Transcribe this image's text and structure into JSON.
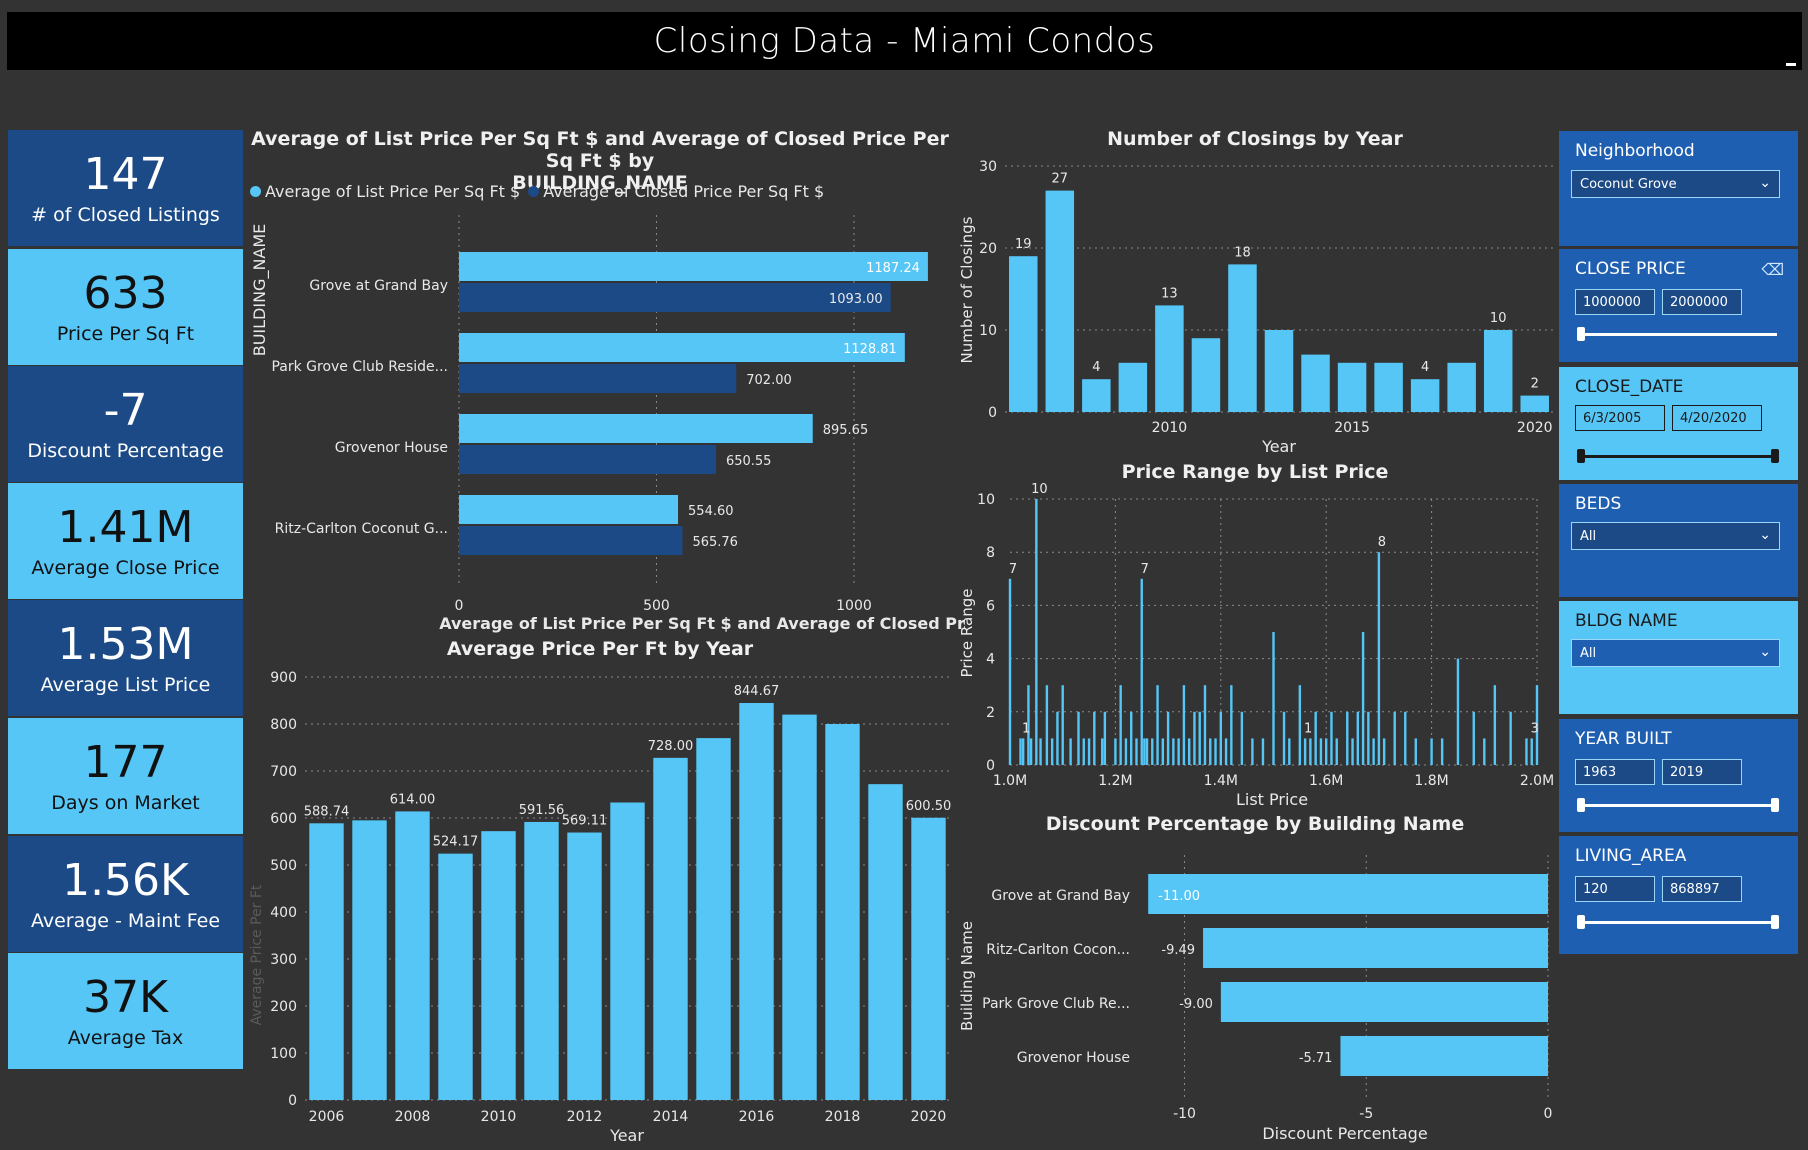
{
  "header": {
    "title": "Closing Data - Miami Condos"
  },
  "kpis": [
    {
      "value": "147",
      "label": "# of Closed Listings"
    },
    {
      "value": "633",
      "label": "Price Per Sq Ft"
    },
    {
      "value": "-7",
      "label": "Discount Percentage"
    },
    {
      "value": "1.41M",
      "label": "Average Close Price"
    },
    {
      "value": "1.53M",
      "label": "Average List Price"
    },
    {
      "value": "177",
      "label": "Days on Market"
    },
    {
      "value": "1.56K",
      "label": "Average - Maint Fee"
    },
    {
      "value": "37K",
      "label": "Average Tax"
    }
  ],
  "charts": {
    "building": {
      "title_line1": "Average of List Price Per Sq Ft $ and Average of Closed Price Per Sq Ft $ by",
      "title_line2": "BUILDING_NAME",
      "legend_list": "Average of List Price Per Sq Ft $",
      "legend_closed": "Average of Closed Price Per Sq Ft $"
    },
    "year_avg": {
      "title": "Average Price Per Ft by Year"
    },
    "closings": {
      "title": "Number of Closings by Year"
    },
    "price_range": {
      "title": "Price Range by List Price"
    },
    "discount": {
      "title": "Discount Percentage by Building Name"
    }
  },
  "colors": {
    "light": "#55c6f6",
    "dark": "#1c4a86",
    "bg": "#333333",
    "slicer_dark": "#1f5fb2"
  },
  "chart_data": [
    {
      "type": "bar",
      "orientation": "horizontal",
      "categories": [
        "Grove at Grand Bay",
        "Park Grove Club Reside...",
        "Grovenor House",
        "Ritz-Carlton Coconut G..."
      ],
      "series": [
        {
          "name": "Average of List Price Per Sq Ft $",
          "values": [
            1187.24,
            1128.81,
            895.65,
            554.6
          ],
          "labels": [
            "1187.24",
            "1128.81",
            "895.65",
            "554.60"
          ]
        },
        {
          "name": "Average of Closed Price Per Sq Ft $",
          "values": [
            1093.0,
            702.0,
            650.55,
            565.76
          ],
          "labels": [
            "1093.00",
            "702.00",
            "650.55",
            "565.76"
          ]
        }
      ],
      "xlabel": "Average of List Price Per Sq Ft $ and Average of Closed Pr...",
      "ylabel": "BUILDING_NAME",
      "xticks": [
        "0",
        "500",
        "1000"
      ],
      "xlim": [
        0,
        1190
      ]
    },
    {
      "type": "bar",
      "x": [
        2006,
        2007,
        2008,
        2009,
        2010,
        2011,
        2012,
        2013,
        2014,
        2015,
        2016,
        2017,
        2018,
        2019,
        2020
      ],
      "values": [
        588.74,
        595,
        614.0,
        524.17,
        572,
        591.56,
        569.11,
        633,
        728.0,
        770,
        844.67,
        820,
        800,
        672,
        600.5
      ],
      "labels": [
        "588.74",
        "",
        "614.00",
        "524.17",
        "",
        "591.56",
        "569.11",
        "",
        "728.00",
        "",
        "844.67",
        "",
        "",
        "",
        "600.50"
      ],
      "xticks": [
        "2006",
        "2008",
        "2010",
        "2012",
        "2014",
        "2016",
        "2018",
        "2020"
      ],
      "yticks": [
        "0",
        "100",
        "200",
        "300",
        "400",
        "500",
        "600",
        "700",
        "800",
        "900"
      ],
      "xlabel": "Year",
      "ylabel": "Average Price Per Ft",
      "ylim": [
        0,
        900
      ]
    },
    {
      "type": "bar",
      "x": [
        2006,
        2007,
        2008,
        2009,
        2010,
        2011,
        2012,
        2013,
        2014,
        2015,
        2016,
        2017,
        2018,
        2019,
        2020
      ],
      "values": [
        19,
        27,
        4,
        6,
        13,
        9,
        18,
        10,
        7,
        6,
        6,
        4,
        6,
        10,
        2
      ],
      "labels": [
        "19",
        "27",
        "4",
        "",
        "13",
        "",
        "18",
        "",
        "",
        "",
        "",
        "4",
        "",
        "10",
        "2"
      ],
      "xticks": [
        "2010",
        "2015",
        "2020"
      ],
      "yticks": [
        "0",
        "10",
        "20",
        "30"
      ],
      "xlabel": "Year",
      "ylabel": "Number of Closings",
      "ylim": [
        0,
        30
      ]
    },
    {
      "type": "bar",
      "xticks": [
        "1.0M",
        "1.2M",
        "1.4M",
        "1.6M",
        "1.8M",
        "2.0M"
      ],
      "yticks": [
        "0",
        "2",
        "4",
        "6",
        "8",
        "10"
      ],
      "xlabel": "List Price",
      "ylabel": "Price Range",
      "xlim": [
        1000000,
        2000000
      ],
      "ylim": [
        0,
        10
      ],
      "points": [
        [
          1000000,
          7
        ],
        [
          1020000,
          1
        ],
        [
          1025000,
          1
        ],
        [
          1035000,
          3
        ],
        [
          1040000,
          1
        ],
        [
          1050000,
          10
        ],
        [
          1058000,
          1
        ],
        [
          1070000,
          3
        ],
        [
          1080000,
          1
        ],
        [
          1090000,
          2
        ],
        [
          1100000,
          3
        ],
        [
          1115000,
          1
        ],
        [
          1130000,
          2
        ],
        [
          1140000,
          1
        ],
        [
          1150000,
          1
        ],
        [
          1160000,
          2
        ],
        [
          1175000,
          1
        ],
        [
          1180000,
          2
        ],
        [
          1200000,
          1
        ],
        [
          1210000,
          3
        ],
        [
          1220000,
          1
        ],
        [
          1230000,
          2
        ],
        [
          1240000,
          1
        ],
        [
          1250000,
          7
        ],
        [
          1255000,
          1
        ],
        [
          1260000,
          1
        ],
        [
          1270000,
          1
        ],
        [
          1280000,
          3
        ],
        [
          1290000,
          1
        ],
        [
          1300000,
          2
        ],
        [
          1310000,
          1
        ],
        [
          1320000,
          1
        ],
        [
          1330000,
          3
        ],
        [
          1340000,
          1
        ],
        [
          1350000,
          2
        ],
        [
          1360000,
          2
        ],
        [
          1370000,
          3
        ],
        [
          1380000,
          1
        ],
        [
          1390000,
          1
        ],
        [
          1400000,
          2
        ],
        [
          1410000,
          1
        ],
        [
          1420000,
          3
        ],
        [
          1440000,
          2
        ],
        [
          1460000,
          1
        ],
        [
          1480000,
          1
        ],
        [
          1500000,
          5
        ],
        [
          1520000,
          2
        ],
        [
          1530000,
          1
        ],
        [
          1550000,
          3
        ],
        [
          1560000,
          1
        ],
        [
          1570000,
          1
        ],
        [
          1580000,
          2
        ],
        [
          1590000,
          1
        ],
        [
          1600000,
          1
        ],
        [
          1610000,
          2
        ],
        [
          1620000,
          1
        ],
        [
          1640000,
          2
        ],
        [
          1650000,
          1
        ],
        [
          1660000,
          2
        ],
        [
          1670000,
          5
        ],
        [
          1680000,
          2
        ],
        [
          1690000,
          1
        ],
        [
          1700000,
          8
        ],
        [
          1710000,
          1
        ],
        [
          1730000,
          2
        ],
        [
          1750000,
          2
        ],
        [
          1770000,
          1
        ],
        [
          1800000,
          1
        ],
        [
          1820000,
          1
        ],
        [
          1850000,
          4
        ],
        [
          1880000,
          2
        ],
        [
          1900000,
          1
        ],
        [
          1920000,
          3
        ],
        [
          1950000,
          2
        ],
        [
          1980000,
          1
        ],
        [
          1990000,
          1
        ],
        [
          2000000,
          3
        ]
      ],
      "annotations": [
        [
          1000000,
          "7"
        ],
        [
          1025000,
          "1"
        ],
        [
          1050000,
          "10"
        ],
        [
          1250000,
          "7"
        ],
        [
          1560000,
          "1"
        ],
        [
          1700000,
          "8"
        ],
        [
          1990000,
          "3"
        ]
      ]
    },
    {
      "type": "bar",
      "orientation": "horizontal",
      "categories": [
        "Grove at Grand Bay",
        "Ritz-Carlton Cocon...",
        "Park Grove Club Re...",
        "Grovenor House"
      ],
      "values": [
        -11.0,
        -9.49,
        -9.0,
        -5.71
      ],
      "labels": [
        "-11.00",
        "-9.49",
        "-9.00",
        "-5.71"
      ],
      "xticks": [
        "-10",
        "-5",
        "0"
      ],
      "xlabel": "Discount Percentage",
      "ylabel": "Building Name",
      "xlim": [
        -11.5,
        0
      ]
    }
  ],
  "filters": {
    "neighborhood": {
      "label": "Neighborhood",
      "value": "Coconut Grove"
    },
    "close_price": {
      "label": "CLOSE PRICE",
      "min": "1000000",
      "max": "2000000"
    },
    "close_date": {
      "label": "CLOSE_DATE",
      "min": "6/3/2005",
      "max": "4/20/2020"
    },
    "beds": {
      "label": "BEDS",
      "value": "All"
    },
    "bldg_name": {
      "label": "BLDG NAME",
      "value": "All"
    },
    "year_built": {
      "label": "YEAR BUILT",
      "min": "1963",
      "max": "2019"
    },
    "living_area": {
      "label": "LIVING_AREA",
      "min": "120",
      "max": "868897"
    }
  }
}
